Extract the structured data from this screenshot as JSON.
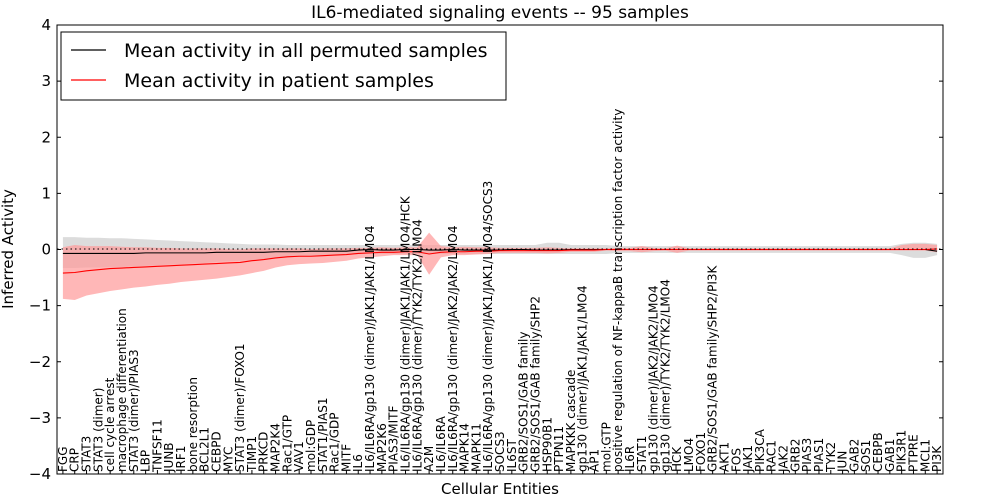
{
  "chart_data": {
    "type": "line",
    "title": "IL6-mediated signaling events -- 95 samples",
    "xlabel": "Cellular Entities",
    "ylabel": "Inferred Activity",
    "ylim": [
      -4,
      4
    ],
    "yticks": [
      "−4",
      "−3",
      "−2",
      "−1",
      "0",
      "1",
      "2",
      "3",
      "4"
    ],
    "legend_position": "top-left",
    "colors": {
      "permuted": "#000000",
      "patient": "#ff0000",
      "patient_band": "#ff9999",
      "permuted_band": "#bfbfbf"
    },
    "categories": [
      "FGG",
      "CRP",
      "STAT3",
      "STAT3 (dimer)",
      "cell cycle arrest",
      "macrophage differentiation",
      "STAT3 (dimer)/PIAS3",
      "LBP",
      "TNFSF11",
      "JUNB",
      "IRF1",
      "bone resorption",
      "BCL2L1",
      "CEBPD",
      "MYC",
      "STAT3 (dimer)/FOXO1",
      "TIMP1",
      "PRKCD",
      "MAP2K4",
      "Rac1/GTP",
      "VAV1",
      "mol:GDP",
      "STAT1/PIAS1",
      "Rac1/GDP",
      "MITF",
      "IL6",
      "IL6/IL6RA/gp130 (dimer)/JAK1/JAK1/LMO4",
      "MAP2K6",
      "PIAS3/MITF",
      "IL6/IL6RA/gp130 (dimer)/JAK1/JAK1/LMO4/HCK",
      "IL6/IL6RA/gp130 (dimer)/TYK2/TYK2/LMO4",
      "A2M",
      "IL6/IL6RA",
      "IL6/IL6RA/gp130 (dimer)/JAK2/JAK2/LMO4",
      "MAPK14",
      "MAPK11",
      "IL6/IL6RA/gp130 (dimer)/JAK1/JAK1/LMO4/SOCS3",
      "SOCS3",
      "IL6ST",
      "GRB2/SOS1/GAB family",
      "GRB2/SOS1/GAB family/SHP2",
      "HSP90B1",
      "PTPN11",
      "MAPKKK cascade",
      "gp130 (dimer)/JAK1/JAK1/LMO4",
      "AP1",
      "mol:GTP",
      "positive regulation of NF-kappaB transcription factor activity",
      "IL6R",
      "STAT1",
      "gp130 (dimer)/JAK2/JAK2/LMO4",
      "gp130 (dimer)/TYK2/TYK2/LMO4",
      "HCK",
      "LMO4",
      "FOXO1",
      "GRB2/SOS1/GAB family/SHP2/PI3K",
      "AKT1",
      "FOS",
      "JAK1",
      "PIK3CA",
      "RAC1",
      "JAK2",
      "GRB2",
      "PIAS3",
      "PIAS1",
      "TYK2",
      "JUN",
      "GAB2",
      "SOS1",
      "CEBPB",
      "GAB1",
      "PIK3R1",
      "PTPRE",
      "MCL1",
      "PI3K"
    ],
    "series": [
      {
        "name": "Mean activity in all permuted samples",
        "values": [
          -0.07,
          -0.07,
          -0.07,
          -0.07,
          -0.07,
          -0.07,
          -0.07,
          -0.06,
          -0.06,
          -0.06,
          -0.06,
          -0.06,
          -0.06,
          -0.05,
          -0.05,
          -0.05,
          -0.05,
          -0.05,
          -0.04,
          -0.04,
          -0.04,
          -0.03,
          -0.03,
          -0.03,
          -0.03,
          -0.01,
          0.0,
          -0.01,
          -0.01,
          0.0,
          0.0,
          -0.01,
          -0.01,
          0.0,
          -0.01,
          -0.01,
          -0.01,
          -0.01,
          0.0,
          0.0,
          -0.01,
          -0.01,
          -0.01,
          0.0,
          0.0,
          0.0,
          0.0,
          0.0,
          0.0,
          0.0,
          0.0,
          0.0,
          0.0,
          0.0,
          0.0,
          0.0,
          0.0,
          0.0,
          0.0,
          0.0,
          0.0,
          0.0,
          0.0,
          0.0,
          0.0,
          0.0,
          0.0,
          0.0,
          0.0,
          0.0,
          0.0,
          0.0,
          0.0,
          0.0,
          -0.03
        ],
        "band_low": [
          -0.33,
          -0.33,
          -0.32,
          -0.32,
          -0.31,
          -0.31,
          -0.3,
          -0.29,
          -0.28,
          -0.27,
          -0.26,
          -0.25,
          -0.24,
          -0.22,
          -0.21,
          -0.2,
          -0.19,
          -0.17,
          -0.16,
          -0.14,
          -0.13,
          -0.12,
          -0.11,
          -0.1,
          -0.09,
          -0.08,
          -0.08,
          -0.08,
          -0.08,
          -0.08,
          -0.08,
          -0.08,
          -0.08,
          -0.08,
          -0.08,
          -0.08,
          -0.08,
          -0.08,
          -0.08,
          -0.08,
          -0.08,
          -0.08,
          -0.08,
          -0.08,
          -0.08,
          -0.08,
          -0.08,
          -0.06,
          -0.06,
          -0.06,
          -0.06,
          -0.06,
          -0.06,
          -0.06,
          -0.06,
          -0.06,
          -0.06,
          -0.06,
          -0.06,
          -0.06,
          -0.06,
          -0.06,
          -0.06,
          -0.06,
          -0.06,
          -0.06,
          -0.06,
          -0.06,
          -0.06,
          -0.06,
          -0.06,
          -0.1,
          -0.15,
          -0.15,
          -0.1
        ],
        "band_high": [
          0.22,
          0.22,
          0.21,
          0.21,
          0.2,
          0.2,
          0.19,
          0.18,
          0.17,
          0.16,
          0.15,
          0.14,
          0.13,
          0.12,
          0.11,
          0.1,
          0.09,
          0.09,
          0.09,
          0.08,
          0.08,
          0.08,
          0.08,
          0.08,
          0.08,
          0.08,
          0.08,
          0.08,
          0.08,
          0.08,
          0.08,
          0.08,
          0.08,
          0.08,
          0.08,
          0.08,
          0.08,
          0.08,
          0.08,
          0.08,
          0.08,
          0.12,
          0.12,
          0.08,
          0.08,
          0.08,
          0.08,
          0.06,
          0.06,
          0.06,
          0.06,
          0.06,
          0.06,
          0.06,
          0.06,
          0.06,
          0.06,
          0.06,
          0.06,
          0.06,
          0.06,
          0.06,
          0.06,
          0.06,
          0.06,
          0.06,
          0.06,
          0.06,
          0.06,
          0.06,
          0.06,
          0.1,
          0.12,
          0.12,
          0.1
        ]
      },
      {
        "name": "Mean activity in patient samples",
        "values": [
          -0.42,
          -0.41,
          -0.38,
          -0.36,
          -0.34,
          -0.33,
          -0.32,
          -0.31,
          -0.3,
          -0.29,
          -0.28,
          -0.27,
          -0.26,
          -0.25,
          -0.24,
          -0.23,
          -0.2,
          -0.18,
          -0.15,
          -0.13,
          -0.12,
          -0.12,
          -0.11,
          -0.1,
          -0.09,
          -0.07,
          -0.06,
          -0.05,
          -0.05,
          -0.04,
          -0.04,
          -0.08,
          -0.05,
          -0.04,
          -0.04,
          -0.03,
          -0.03,
          -0.02,
          -0.02,
          -0.02,
          -0.02,
          -0.02,
          -0.02,
          -0.01,
          -0.01,
          -0.01,
          0.0,
          0.0,
          0.0,
          0.0,
          0.0,
          0.0,
          0.0,
          0.0,
          0.0,
          0.0,
          0.0,
          0.0,
          0.0,
          0.0,
          0.0,
          0.0,
          0.0,
          0.0,
          0.0,
          0.0,
          0.0,
          0.0,
          0.0,
          0.0,
          0.0,
          0.0,
          0.0,
          0.0,
          0.01
        ],
        "band_low": [
          -0.88,
          -0.9,
          -0.82,
          -0.78,
          -0.74,
          -0.71,
          -0.68,
          -0.66,
          -0.63,
          -0.61,
          -0.58,
          -0.56,
          -0.54,
          -0.52,
          -0.49,
          -0.46,
          -0.42,
          -0.38,
          -0.32,
          -0.28,
          -0.26,
          -0.25,
          -0.24,
          -0.22,
          -0.2,
          -0.16,
          -0.14,
          -0.12,
          -0.1,
          -0.1,
          -0.1,
          -0.45,
          -0.14,
          -0.1,
          -0.1,
          -0.09,
          -0.08,
          -0.06,
          -0.06,
          -0.06,
          -0.06,
          -0.07,
          -0.06,
          -0.04,
          -0.04,
          -0.04,
          -0.02,
          -0.03,
          -0.03,
          -0.05,
          -0.03,
          -0.02,
          -0.06,
          -0.02,
          -0.02,
          -0.02,
          -0.02,
          -0.02,
          -0.02,
          -0.02,
          -0.02,
          -0.02,
          -0.02,
          -0.02,
          -0.02,
          -0.02,
          -0.02,
          -0.02,
          -0.02,
          -0.02,
          -0.02,
          -0.02,
          -0.02,
          -0.02,
          -0.05
        ],
        "band_high": [
          0.04,
          0.08,
          0.06,
          0.06,
          0.06,
          0.05,
          0.04,
          0.04,
          0.03,
          0.03,
          0.02,
          0.02,
          0.02,
          0.02,
          0.01,
          0.0,
          0.02,
          0.02,
          0.02,
          0.02,
          0.02,
          0.01,
          0.02,
          0.02,
          0.02,
          0.03,
          0.03,
          0.04,
          0.03,
          0.04,
          0.04,
          0.3,
          0.06,
          0.04,
          0.05,
          0.04,
          0.04,
          0.03,
          0.03,
          0.03,
          0.03,
          0.04,
          0.03,
          0.02,
          0.02,
          0.02,
          0.02,
          0.03,
          0.03,
          0.06,
          0.03,
          0.02,
          0.07,
          0.02,
          0.02,
          0.02,
          0.02,
          0.02,
          0.02,
          0.02,
          0.02,
          0.02,
          0.02,
          0.02,
          0.02,
          0.02,
          0.02,
          0.02,
          0.02,
          0.02,
          0.02,
          0.08,
          0.1,
          0.1,
          0.08
        ]
      }
    ]
  }
}
